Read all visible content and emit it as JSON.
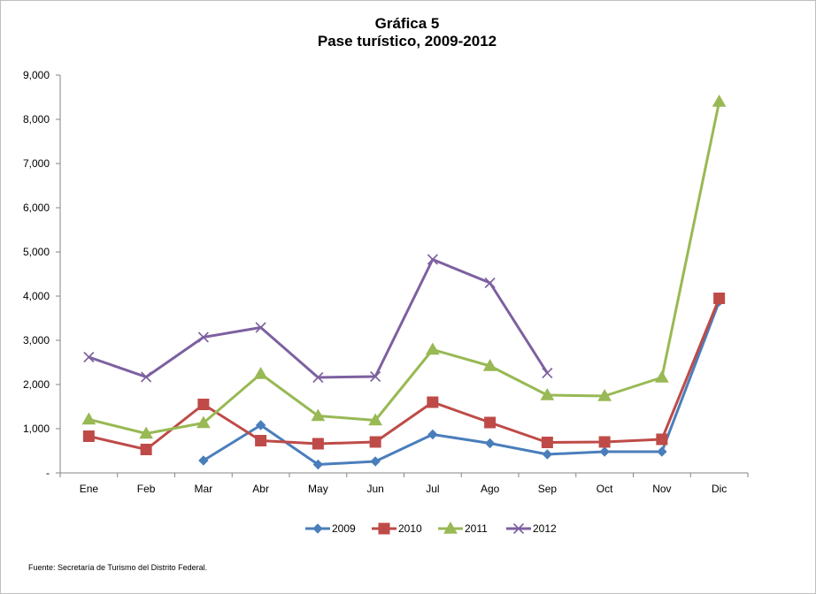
{
  "chart_data": {
    "type": "line",
    "title": "Gráfica 5",
    "subtitle": "Pase turístico, 2009-2012",
    "xlabel": "",
    "ylabel": "",
    "categories": [
      "Ene",
      "Feb",
      "Mar",
      "Abr",
      "May",
      "Jun",
      "Jul",
      "Ago",
      "Sep",
      "Oct",
      "Nov",
      "Dic"
    ],
    "ylim": [
      0,
      9000
    ],
    "yticks": [
      0,
      1000,
      2000,
      3000,
      4000,
      5000,
      6000,
      7000,
      8000,
      9000
    ],
    "ytick_labels": [
      "-",
      "1,000",
      "2,000",
      "3,000",
      "4,000",
      "5,000",
      "6,000",
      "7,000",
      "8,000",
      "9,000"
    ],
    "grid": false,
    "legend_position": "bottom",
    "series": [
      {
        "name": "2009",
        "color": "#4a7ebb",
        "marker": "diamond",
        "values": [
          null,
          null,
          280,
          1080,
          190,
          260,
          870,
          670,
          420,
          480,
          480,
          3880
        ]
      },
      {
        "name": "2010",
        "color": "#be4b48",
        "marker": "square",
        "values": [
          830,
          530,
          1550,
          730,
          660,
          700,
          1600,
          1140,
          690,
          700,
          760,
          3950
        ]
      },
      {
        "name": "2011",
        "color": "#98b954",
        "marker": "triangle",
        "values": [
          1210,
          890,
          1130,
          2240,
          1290,
          1190,
          2790,
          2420,
          1760,
          1740,
          2160,
          8400
        ]
      },
      {
        "name": "2012",
        "color": "#7d60a0",
        "marker": "x",
        "values": [
          2620,
          2170,
          3070,
          3290,
          2160,
          2180,
          4830,
          4300,
          2260,
          null,
          null,
          null
        ]
      }
    ],
    "source_note": "Fuente: Secretaría de Turismo del Distrito Federal."
  }
}
